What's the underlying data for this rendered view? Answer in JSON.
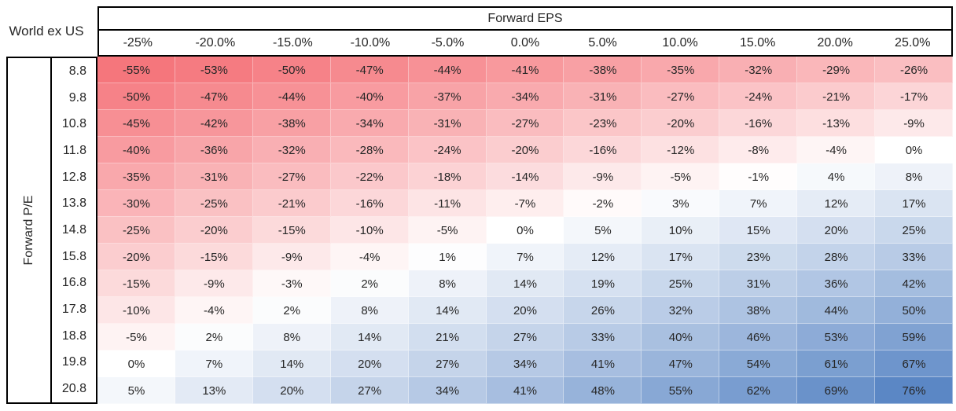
{
  "corner_label": "World ex US",
  "chart_data": {
    "type": "heatmap",
    "title": "World ex US",
    "x_group_label": "Forward EPS",
    "y_group_label": "Forward P/E",
    "columns": [
      "-25%",
      "-20.0%",
      "-15.0%",
      "-10.0%",
      "-5.0%",
      "0.0%",
      "5.0%",
      "10.0%",
      "15.0%",
      "20.0%",
      "25.0%"
    ],
    "rows": [
      "8.8",
      "9.8",
      "10.8",
      "11.8",
      "12.8",
      "13.8",
      "14.8",
      "15.8",
      "16.8",
      "17.8",
      "18.8",
      "19.8",
      "20.8"
    ],
    "values": [
      [
        -55,
        -53,
        -50,
        -47,
        -44,
        -41,
        -38,
        -35,
        -32,
        -29,
        -26
      ],
      [
        -50,
        -47,
        -44,
        -40,
        -37,
        -34,
        -31,
        -27,
        -24,
        -21,
        -17
      ],
      [
        -45,
        -42,
        -38,
        -34,
        -31,
        -27,
        -23,
        -20,
        -16,
        -13,
        -9
      ],
      [
        -40,
        -36,
        -32,
        -28,
        -24,
        -20,
        -16,
        -12,
        -8,
        -4,
        0
      ],
      [
        -35,
        -31,
        -27,
        -22,
        -18,
        -14,
        -9,
        -5,
        -1,
        4,
        8
      ],
      [
        -30,
        -25,
        -21,
        -16,
        -11,
        -7,
        -2,
        3,
        7,
        12,
        17
      ],
      [
        -25,
        -20,
        -15,
        -10,
        -5,
        0,
        5,
        10,
        15,
        20,
        25
      ],
      [
        -20,
        -15,
        -9,
        -4,
        1,
        7,
        12,
        17,
        23,
        28,
        33
      ],
      [
        -15,
        -9,
        -3,
        2,
        8,
        14,
        19,
        25,
        31,
        36,
        42
      ],
      [
        -10,
        -4,
        2,
        8,
        14,
        20,
        26,
        32,
        38,
        44,
        50
      ],
      [
        -5,
        2,
        8,
        14,
        21,
        27,
        33,
        40,
        46,
        53,
        59
      ],
      [
        0,
        7,
        14,
        20,
        27,
        34,
        41,
        47,
        54,
        61,
        67
      ],
      [
        5,
        13,
        20,
        27,
        34,
        41,
        48,
        55,
        62,
        69,
        76
      ]
    ],
    "value_format": "percent",
    "color_scale": {
      "negative_end": "#F5767C",
      "midpoint": "#FFFFFF",
      "positive_end": "#5B87C5",
      "domain": [
        -55,
        0,
        76
      ]
    },
    "grid": false,
    "legend": "none"
  }
}
